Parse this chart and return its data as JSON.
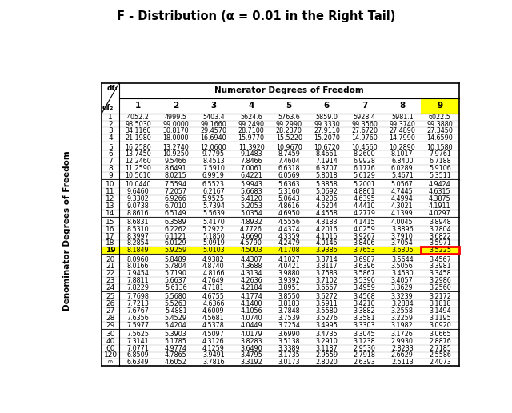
{
  "title": "F - Distribution (α = 0.01 in the Right Tail)",
  "col_headers": [
    "1",
    "2",
    "3",
    "4",
    "5",
    "6",
    "7",
    "8",
    "9"
  ],
  "df2_vals": [
    "1",
    "2",
    "3",
    "4",
    "5",
    "6",
    "7",
    "8",
    "9",
    "10",
    "11",
    "12",
    "13",
    "14",
    "15",
    "16",
    "17",
    "18",
    "19",
    "20",
    "21",
    "22",
    "23",
    "24",
    "25",
    "26",
    "27",
    "28",
    "29",
    "30",
    "40",
    "60",
    "120",
    "∞"
  ],
  "table_data": [
    [
      4052.2,
      4999.5,
      5403.4,
      5624.6,
      5763.6,
      5859.0,
      5928.4,
      5981.1,
      6022.5
    ],
    [
      98.503,
      99.0,
      99.166,
      99.249,
      99.299,
      99.333,
      99.356,
      99.374,
      99.388
    ],
    [
      34.116,
      30.817,
      29.457,
      28.71,
      28.237,
      27.911,
      27.672,
      27.489,
      27.345
    ],
    [
      21.198,
      18.0,
      16.694,
      15.977,
      15.522,
      15.207,
      14.976,
      14.799,
      14.659
    ],
    [
      16.258,
      13.274,
      12.06,
      11.392,
      10.967,
      10.672,
      10.456,
      10.289,
      10.158
    ],
    [
      13.745,
      10.925,
      9.7795,
      9.1483,
      8.7459,
      8.4661,
      8.26,
      8.1017,
      7.9761
    ],
    [
      12.246,
      9.5466,
      8.4513,
      7.8466,
      7.4604,
      7.1914,
      6.9928,
      6.84,
      6.7188
    ],
    [
      11.259,
      8.6491,
      7.591,
      7.0061,
      6.6318,
      6.3707,
      6.1776,
      6.0289,
      5.9106
    ],
    [
      10.561,
      8.0215,
      6.9919,
      6.4221,
      6.0569,
      5.8018,
      5.6129,
      5.4671,
      5.3511
    ],
    [
      10.044,
      7.5594,
      6.5523,
      5.9943,
      5.6363,
      5.3858,
      5.2001,
      5.0567,
      4.9424
    ],
    [
      9.646,
      7.2057,
      6.2167,
      5.6683,
      5.316,
      5.0692,
      4.8861,
      4.7445,
      4.6315
    ],
    [
      9.3302,
      6.9266,
      5.9525,
      5.412,
      5.0643,
      4.8206,
      4.6395,
      4.4994,
      4.3875
    ],
    [
      9.0738,
      6.701,
      5.7394,
      5.2053,
      4.8616,
      4.6204,
      4.441,
      4.3021,
      4.1911
    ],
    [
      8.8616,
      6.5149,
      5.5639,
      5.0354,
      4.695,
      4.4558,
      4.2779,
      4.1399,
      4.0297
    ],
    [
      8.6831,
      6.3589,
      5.417,
      4.8932,
      4.5556,
      4.3183,
      4.1415,
      4.0045,
      3.8948
    ],
    [
      8.531,
      6.2262,
      5.2922,
      4.7726,
      4.4374,
      4.2016,
      4.0259,
      3.8896,
      3.7804
    ],
    [
      8.3997,
      6.1121,
      5.185,
      4.669,
      4.3359,
      4.1015,
      3.9267,
      3.791,
      3.6822
    ],
    [
      8.2854,
      6.0129,
      5.0919,
      4.579,
      4.2479,
      4.0146,
      3.8406,
      3.7054,
      3.5971
    ],
    [
      8.1849,
      5.9259,
      5.0103,
      4.5003,
      4.1708,
      3.9386,
      3.7653,
      3.6305,
      3.5225
    ],
    [
      8.096,
      5.8489,
      4.9382,
      4.4307,
      4.1027,
      3.8714,
      3.6987,
      3.5644,
      3.4567
    ],
    [
      8.0166,
      5.7804,
      4.874,
      4.3688,
      4.0421,
      3.8117,
      3.6396,
      3.5056,
      3.3981
    ],
    [
      7.9454,
      5.719,
      4.8166,
      4.3134,
      3.988,
      3.7583,
      3.5867,
      3.453,
      3.3458
    ],
    [
      7.8811,
      5.6637,
      4.7649,
      4.2636,
      3.9392,
      3.7102,
      3.539,
      3.4057,
      3.2986
    ],
    [
      7.8229,
      5.6136,
      4.7181,
      4.2184,
      3.8951,
      3.6667,
      3.4959,
      3.3629,
      3.256
    ],
    [
      7.7698,
      5.568,
      4.6755,
      4.1774,
      3.855,
      3.6272,
      3.4568,
      3.3239,
      3.2172
    ],
    [
      7.7213,
      5.5263,
      4.6366,
      4.14,
      3.8183,
      3.5911,
      3.421,
      3.2884,
      3.1818
    ],
    [
      7.6767,
      5.4881,
      4.6009,
      4.1056,
      3.7848,
      3.558,
      3.3882,
      3.2558,
      3.1494
    ],
    [
      7.6356,
      5.4529,
      4.5681,
      4.074,
      3.7539,
      3.5276,
      3.3581,
      3.2259,
      3.1195
    ],
    [
      7.5977,
      5.4204,
      4.5378,
      4.0449,
      3.7254,
      3.4995,
      3.3303,
      3.1982,
      3.092
    ],
    [
      7.5625,
      5.3903,
      4.5097,
      4.0179,
      3.699,
      3.4735,
      3.3045,
      3.1726,
      3.0665
    ],
    [
      7.3141,
      5.1785,
      4.3126,
      3.8283,
      3.5138,
      3.291,
      3.1238,
      2.993,
      2.8876
    ],
    [
      7.0771,
      4.9774,
      4.1259,
      3.649,
      3.3389,
      3.1187,
      2.953,
      2.8233,
      2.7185
    ],
    [
      6.8509,
      4.7865,
      3.9491,
      3.4795,
      3.1735,
      2.9559,
      2.7918,
      2.6629,
      2.5586
    ],
    [
      6.6349,
      4.6052,
      3.7816,
      3.3192,
      3.0173,
      2.802,
      2.6393,
      2.5113,
      2.4073
    ]
  ],
  "highlight_row": 18,
  "highlight_col": 8,
  "highlight_row_color": "#FFFF00",
  "highlight_col_color": "#FFFF00",
  "highlight_cell_border_color": "#FF0000",
  "bg_color": "#FFFFFF",
  "grid_color": "#AAAAAA",
  "text_color": "#000000",
  "spacer_after": [
    3,
    8,
    13,
    18,
    23,
    28
  ]
}
